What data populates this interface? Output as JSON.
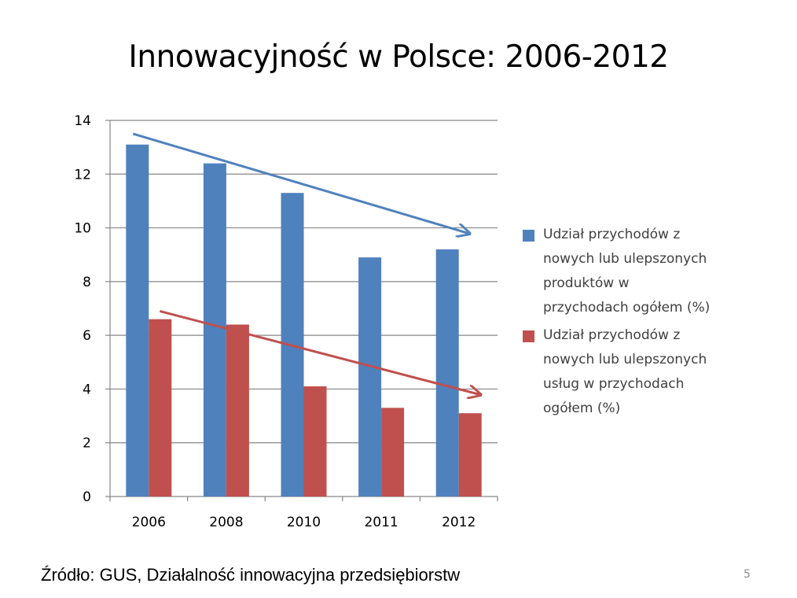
{
  "slide": {
    "title": "Innowacyjność w Polsce: 2006-2012",
    "source": "Źródło: GUS, Działalność innowacyjna przedsiębiorstw",
    "page_number": "5"
  },
  "colors": {
    "series_products": "#4f81bd",
    "series_services": "#c0504d",
    "grid": "#868686",
    "axis_text": "#404040"
  },
  "chart_data": {
    "type": "bar",
    "categories": [
      "2006",
      "2008",
      "2010",
      "2011",
      "2012"
    ],
    "series": [
      {
        "name": "Udział przychodów z nowych lub ulepszonych produktów w przychodach ogółem (%)",
        "values": [
          13.1,
          12.4,
          11.3,
          8.9,
          9.2
        ]
      },
      {
        "name": "Udział przychodów z nowych lub ulepszonych usług w przychodach ogółem (%)",
        "values": [
          6.6,
          6.4,
          4.1,
          3.3,
          3.1
        ]
      }
    ],
    "ylim": [
      0,
      14
    ],
    "yticks": [
      "0",
      "2",
      "4",
      "6",
      "8",
      "10",
      "12",
      "14"
    ],
    "grid": true,
    "legend_position": "right",
    "trend_arrows": [
      {
        "series": "products",
        "from": {
          "x": "2006",
          "y": 13.5
        },
        "to": {
          "x": "2012",
          "y": 9.8
        }
      },
      {
        "series": "services",
        "from": {
          "x": "2006",
          "y": 6.9
        },
        "to": {
          "x": "2012",
          "y": 3.8
        }
      }
    ]
  },
  "legend": {
    "items": [
      {
        "label": "Udział przychodów  z\nnowych lub ulepszonych\nproduktów  w\nprzychodach ogółem (%)"
      },
      {
        "label": "Udział przychodów  z\nnowych lub ulepszonych\nusług w przychodach\nogółem (%)"
      }
    ]
  }
}
